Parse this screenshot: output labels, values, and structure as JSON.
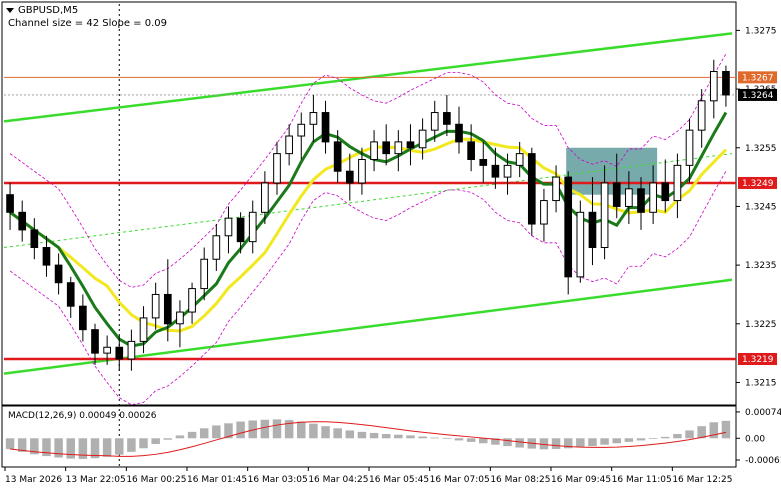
{
  "header": {
    "symbol_label": "GBPUSD,M5",
    "channel_label": "Channel size = 42 Slope = 0.09"
  },
  "price_axis": {
    "ticks": [
      {
        "label": "1.3275",
        "value": 1.3275
      },
      {
        "label": "1.3265",
        "value": 1.3265
      },
      {
        "label": "1.3255",
        "value": 1.3255
      },
      {
        "label": "1.3245",
        "value": 1.3245
      },
      {
        "label": "1.3235",
        "value": 1.3235
      },
      {
        "label": "1.3225",
        "value": 1.3225
      },
      {
        "label": "1.3215",
        "value": 1.3215
      }
    ],
    "ylim": [
      1.32115,
      1.32795
    ]
  },
  "levels": {
    "top_orange": {
      "value": 1.3267,
      "label": "1.3267",
      "color": "#e06a2c"
    },
    "current": {
      "value": 1.3264,
      "label": "1.3264",
      "color": "#000000"
    },
    "resistance": {
      "value": 1.3249,
      "label": "1.3249",
      "color": "#e0191a"
    },
    "support": {
      "value": 1.3219,
      "label": "1.3219",
      "color": "#e0191a"
    }
  },
  "time_axis": {
    "labels": [
      "13 Mar 2026",
      "13 Mar 22:05",
      "16 Mar 00:25",
      "16 Mar 01:45",
      "16 Mar 03:05",
      "16 Mar 04:25",
      "16 Mar 05:45",
      "16 Mar 07:05",
      "16 Mar 08:25",
      "16 Mar 09:45",
      "16 Mar 11:05",
      "16 Mar 12:25"
    ]
  },
  "macd": {
    "label": "MACD(12,26,9) 0.00049 0.00026",
    "ticks": [
      {
        "label": "0.00074",
        "value": 0.00074
      },
      {
        "label": "0.00",
        "value": 0.0
      },
      {
        "label": "-0.00061",
        "value": -0.00061
      }
    ],
    "ylim": [
      -0.00075,
      0.00085
    ]
  },
  "colors": {
    "bull": "#000000",
    "bear": "#000000",
    "ema_fast": "#1a7a1a",
    "ema_slow": "#f2e81e",
    "channel": "#3adc2c",
    "bands": "#cc00cc",
    "highlight_box": "#5f9c9c",
    "macd_hist": "#b0b0b0",
    "macd_signal": "#e0191a",
    "axis_text": "#000000"
  },
  "chart_data": {
    "type": "candlestick",
    "symbol": "GBPUSD",
    "timeframe": "M5",
    "candles": [
      {
        "o": 1.3247,
        "h": 1.3249,
        "l": 1.3241,
        "c": 1.3244
      },
      {
        "o": 1.3244,
        "h": 1.3246,
        "l": 1.3239,
        "c": 1.3241
      },
      {
        "o": 1.3241,
        "h": 1.3243,
        "l": 1.3236,
        "c": 1.3238
      },
      {
        "o": 1.3238,
        "h": 1.324,
        "l": 1.3233,
        "c": 1.3235
      },
      {
        "o": 1.3235,
        "h": 1.3237,
        "l": 1.323,
        "c": 1.3232
      },
      {
        "o": 1.3232,
        "h": 1.3233,
        "l": 1.3226,
        "c": 1.3228
      },
      {
        "o": 1.3228,
        "h": 1.323,
        "l": 1.3222,
        "c": 1.3224
      },
      {
        "o": 1.3224,
        "h": 1.3225,
        "l": 1.3218,
        "c": 1.322
      },
      {
        "o": 1.322,
        "h": 1.3223,
        "l": 1.3218,
        "c": 1.3221
      },
      {
        "o": 1.3221,
        "h": 1.3223,
        "l": 1.3217,
        "c": 1.3219
      },
      {
        "o": 1.3219,
        "h": 1.3224,
        "l": 1.3217,
        "c": 1.3222
      },
      {
        "o": 1.3222,
        "h": 1.3228,
        "l": 1.322,
        "c": 1.3226
      },
      {
        "o": 1.3226,
        "h": 1.3232,
        "l": 1.3224,
        "c": 1.323
      },
      {
        "o": 1.323,
        "h": 1.3236,
        "l": 1.3222,
        "c": 1.3225
      },
      {
        "o": 1.3225,
        "h": 1.3229,
        "l": 1.3221,
        "c": 1.3227
      },
      {
        "o": 1.3227,
        "h": 1.3232,
        "l": 1.3225,
        "c": 1.3231
      },
      {
        "o": 1.3231,
        "h": 1.3238,
        "l": 1.3229,
        "c": 1.3236
      },
      {
        "o": 1.3236,
        "h": 1.3242,
        "l": 1.3234,
        "c": 1.324
      },
      {
        "o": 1.324,
        "h": 1.3245,
        "l": 1.3237,
        "c": 1.3243
      },
      {
        "o": 1.3243,
        "h": 1.3244,
        "l": 1.3237,
        "c": 1.3239
      },
      {
        "o": 1.3239,
        "h": 1.3246,
        "l": 1.3237,
        "c": 1.3244
      },
      {
        "o": 1.3244,
        "h": 1.3251,
        "l": 1.3242,
        "c": 1.3249
      },
      {
        "o": 1.3249,
        "h": 1.3256,
        "l": 1.3247,
        "c": 1.3254
      },
      {
        "o": 1.3254,
        "h": 1.3259,
        "l": 1.3252,
        "c": 1.3257
      },
      {
        "o": 1.3257,
        "h": 1.3261,
        "l": 1.3253,
        "c": 1.3259
      },
      {
        "o": 1.3259,
        "h": 1.3264,
        "l": 1.3256,
        "c": 1.3261
      },
      {
        "o": 1.3261,
        "h": 1.3263,
        "l": 1.3254,
        "c": 1.3256
      },
      {
        "o": 1.3256,
        "h": 1.3258,
        "l": 1.3249,
        "c": 1.3251
      },
      {
        "o": 1.3251,
        "h": 1.3254,
        "l": 1.3246,
        "c": 1.3249
      },
      {
        "o": 1.3249,
        "h": 1.3255,
        "l": 1.3247,
        "c": 1.3253
      },
      {
        "o": 1.3253,
        "h": 1.3258,
        "l": 1.3251,
        "c": 1.3256
      },
      {
        "o": 1.3256,
        "h": 1.3259,
        "l": 1.3252,
        "c": 1.3254
      },
      {
        "o": 1.3254,
        "h": 1.3258,
        "l": 1.3251,
        "c": 1.3256
      },
      {
        "o": 1.3256,
        "h": 1.3259,
        "l": 1.3252,
        "c": 1.3255
      },
      {
        "o": 1.3255,
        "h": 1.326,
        "l": 1.3253,
        "c": 1.3258
      },
      {
        "o": 1.3258,
        "h": 1.3263,
        "l": 1.3256,
        "c": 1.3261
      },
      {
        "o": 1.3261,
        "h": 1.3264,
        "l": 1.3257,
        "c": 1.3259
      },
      {
        "o": 1.3259,
        "h": 1.3262,
        "l": 1.3254,
        "c": 1.3256
      },
      {
        "o": 1.3256,
        "h": 1.3259,
        "l": 1.3251,
        "c": 1.3253
      },
      {
        "o": 1.3253,
        "h": 1.3256,
        "l": 1.3249,
        "c": 1.3252
      },
      {
        "o": 1.3252,
        "h": 1.3255,
        "l": 1.3248,
        "c": 1.325
      },
      {
        "o": 1.325,
        "h": 1.3254,
        "l": 1.3247,
        "c": 1.3252
      },
      {
        "o": 1.3252,
        "h": 1.3256,
        "l": 1.325,
        "c": 1.3254
      },
      {
        "o": 1.3254,
        "h": 1.3255,
        "l": 1.324,
        "c": 1.3242
      },
      {
        "o": 1.3242,
        "h": 1.3248,
        "l": 1.3239,
        "c": 1.3246
      },
      {
        "o": 1.3246,
        "h": 1.3252,
        "l": 1.3244,
        "c": 1.325
      },
      {
        "o": 1.325,
        "h": 1.3251,
        "l": 1.323,
        "c": 1.3233
      },
      {
        "o": 1.3233,
        "h": 1.3246,
        "l": 1.3232,
        "c": 1.3244
      },
      {
        "o": 1.3244,
        "h": 1.325,
        "l": 1.3235,
        "c": 1.3238
      },
      {
        "o": 1.3238,
        "h": 1.3252,
        "l": 1.3236,
        "c": 1.3249
      },
      {
        "o": 1.3249,
        "h": 1.3254,
        "l": 1.3243,
        "c": 1.3245
      },
      {
        "o": 1.3245,
        "h": 1.3251,
        "l": 1.3242,
        "c": 1.3248
      },
      {
        "o": 1.3248,
        "h": 1.325,
        "l": 1.3241,
        "c": 1.3244
      },
      {
        "o": 1.3244,
        "h": 1.3252,
        "l": 1.3242,
        "c": 1.3249
      },
      {
        "o": 1.3249,
        "h": 1.3253,
        "l": 1.3244,
        "c": 1.3246
      },
      {
        "o": 1.3246,
        "h": 1.3254,
        "l": 1.3243,
        "c": 1.3252
      },
      {
        "o": 1.3252,
        "h": 1.326,
        "l": 1.3249,
        "c": 1.3258
      },
      {
        "o": 1.3258,
        "h": 1.3265,
        "l": 1.3255,
        "c": 1.3263
      },
      {
        "o": 1.3263,
        "h": 1.327,
        "l": 1.326,
        "c": 1.3268
      },
      {
        "o": 1.3268,
        "h": 1.3269,
        "l": 1.3262,
        "c": 1.3264
      }
    ],
    "macd_histogram": [
      -0.0003,
      -0.00038,
      -0.00045,
      -0.0005,
      -0.00054,
      -0.00057,
      -0.00058,
      -0.00056,
      -0.00052,
      -0.00046,
      -0.00038,
      -0.00028,
      -0.00016,
      -4e-05,
      8e-05,
      0.00018,
      0.00028,
      0.00036,
      0.00042,
      0.00047,
      0.0005,
      0.00052,
      0.00053,
      0.00051,
      0.00047,
      0.00041,
      0.00034,
      0.00028,
      0.00022,
      0.00018,
      0.00015,
      0.00012,
      0.0001,
      8e-05,
      5e-05,
      2e-05,
      -2e-05,
      -6e-05,
      -0.0001,
      -0.00014,
      -0.00018,
      -0.00022,
      -0.00026,
      -0.00029,
      -0.00031,
      -0.0003,
      -0.00028,
      -0.00025,
      -0.00022,
      -0.00018,
      -0.00014,
      -0.0001,
      -6e-05,
      -2e-05,
      4e-05,
      0.00012,
      0.00022,
      0.00034,
      0.00045,
      0.00049
    ],
    "macd_signal_value": 0.00026
  }
}
